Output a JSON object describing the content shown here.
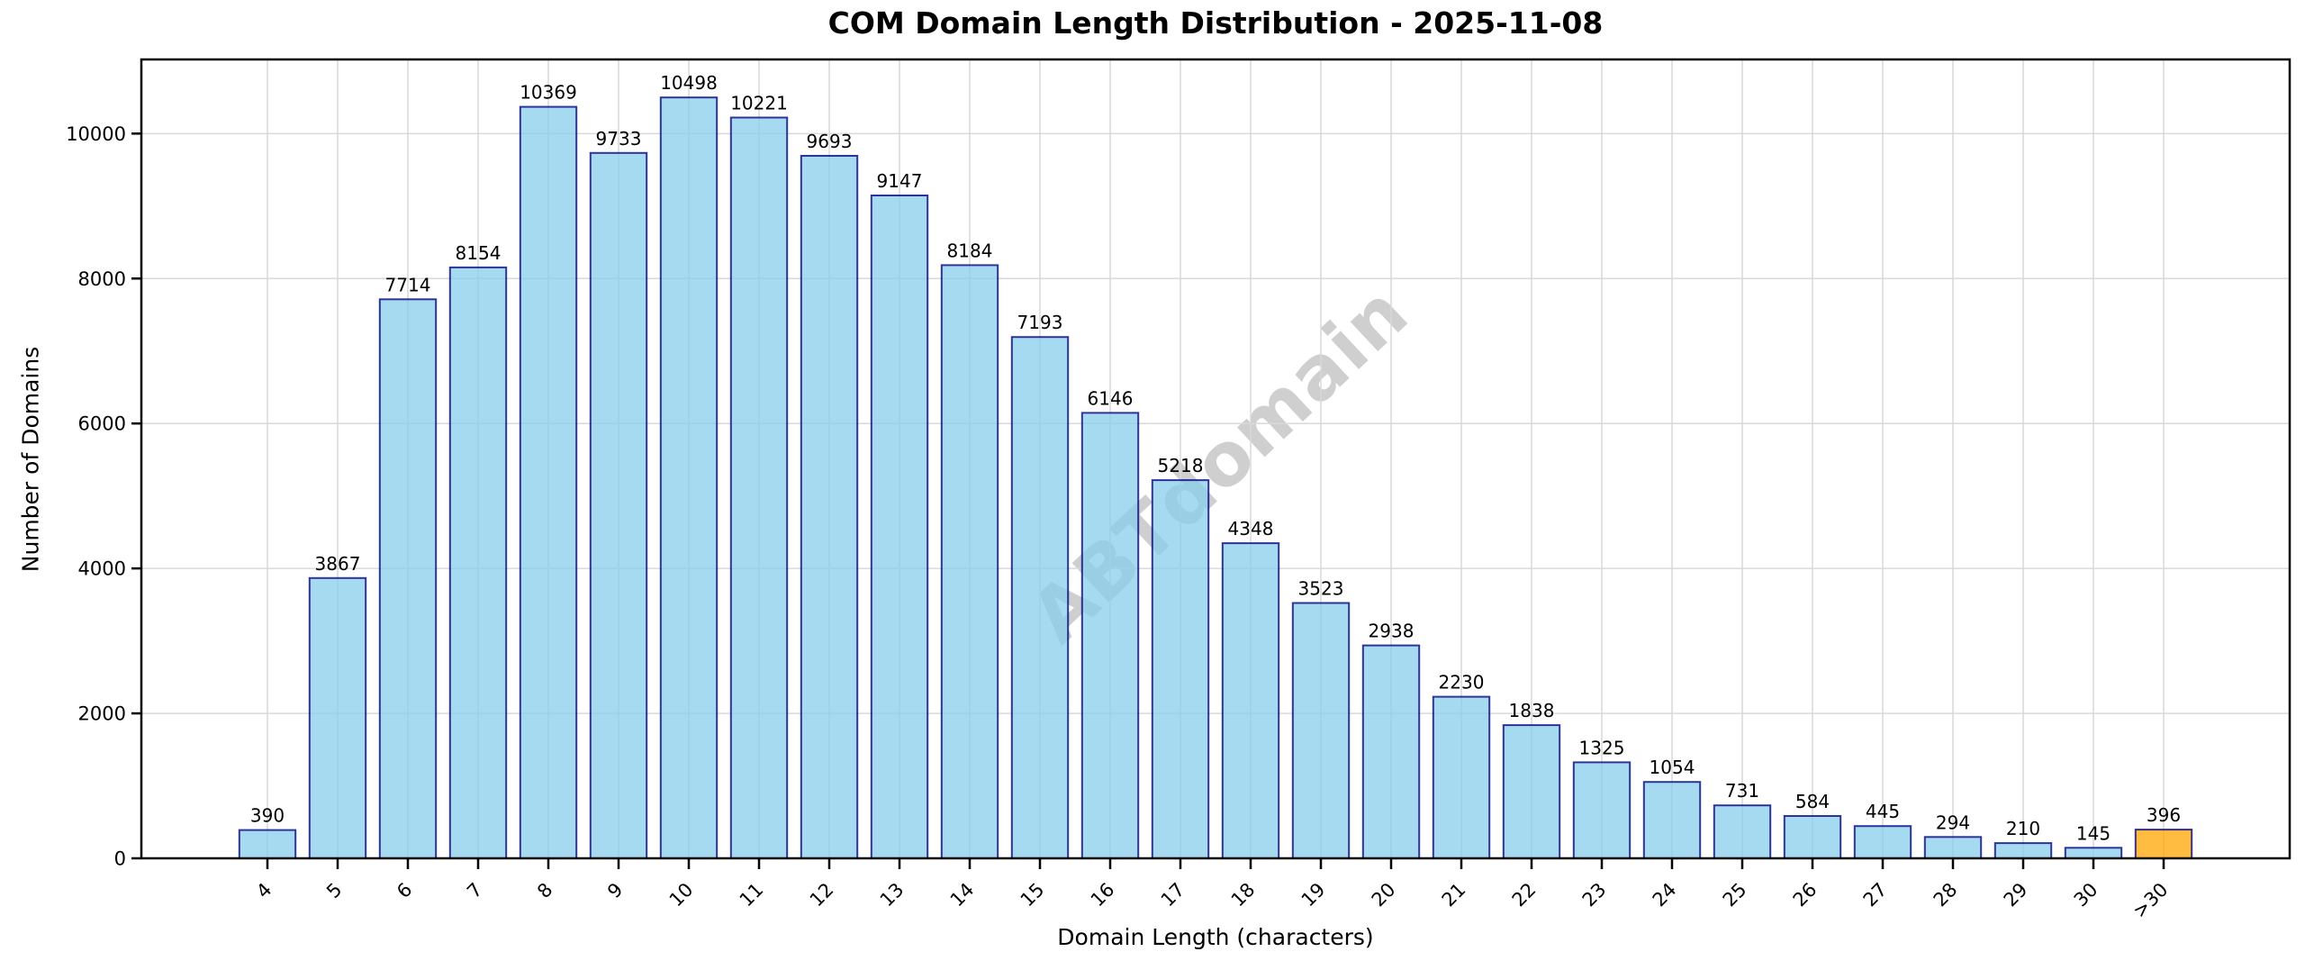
{
  "chart_data": {
    "type": "bar",
    "title": "COM Domain Length Distribution - 2025-11-08",
    "xlabel": "Domain Length (characters)",
    "ylabel": "Number of Domains",
    "watermark": "ABTdomain",
    "categories": [
      "4",
      "5",
      "6",
      "7",
      "8",
      "9",
      "10",
      "11",
      "12",
      "13",
      "14",
      "15",
      "16",
      "17",
      "18",
      "19",
      "20",
      "21",
      "22",
      "23",
      "24",
      "25",
      "26",
      "27",
      "28",
      "29",
      "30",
      ">30"
    ],
    "values": [
      390,
      3867,
      7714,
      8154,
      10369,
      9733,
      10498,
      10221,
      9693,
      9147,
      8184,
      7193,
      6146,
      5218,
      4348,
      3523,
      2938,
      2230,
      1838,
      1325,
      1054,
      731,
      584,
      445,
      294,
      210,
      145,
      396
    ],
    "yticks": [
      0,
      2000,
      4000,
      6000,
      8000,
      10000
    ],
    "ylim": [
      0,
      11023
    ],
    "grid": true,
    "legend": null,
    "highlight_category": ">30",
    "colors": {
      "bar_fill": "#87CEEB",
      "bar_edge": "#000080",
      "highlight_fill": "#FFA500",
      "grid": "#D9D9D9",
      "watermark": "#808080"
    }
  }
}
